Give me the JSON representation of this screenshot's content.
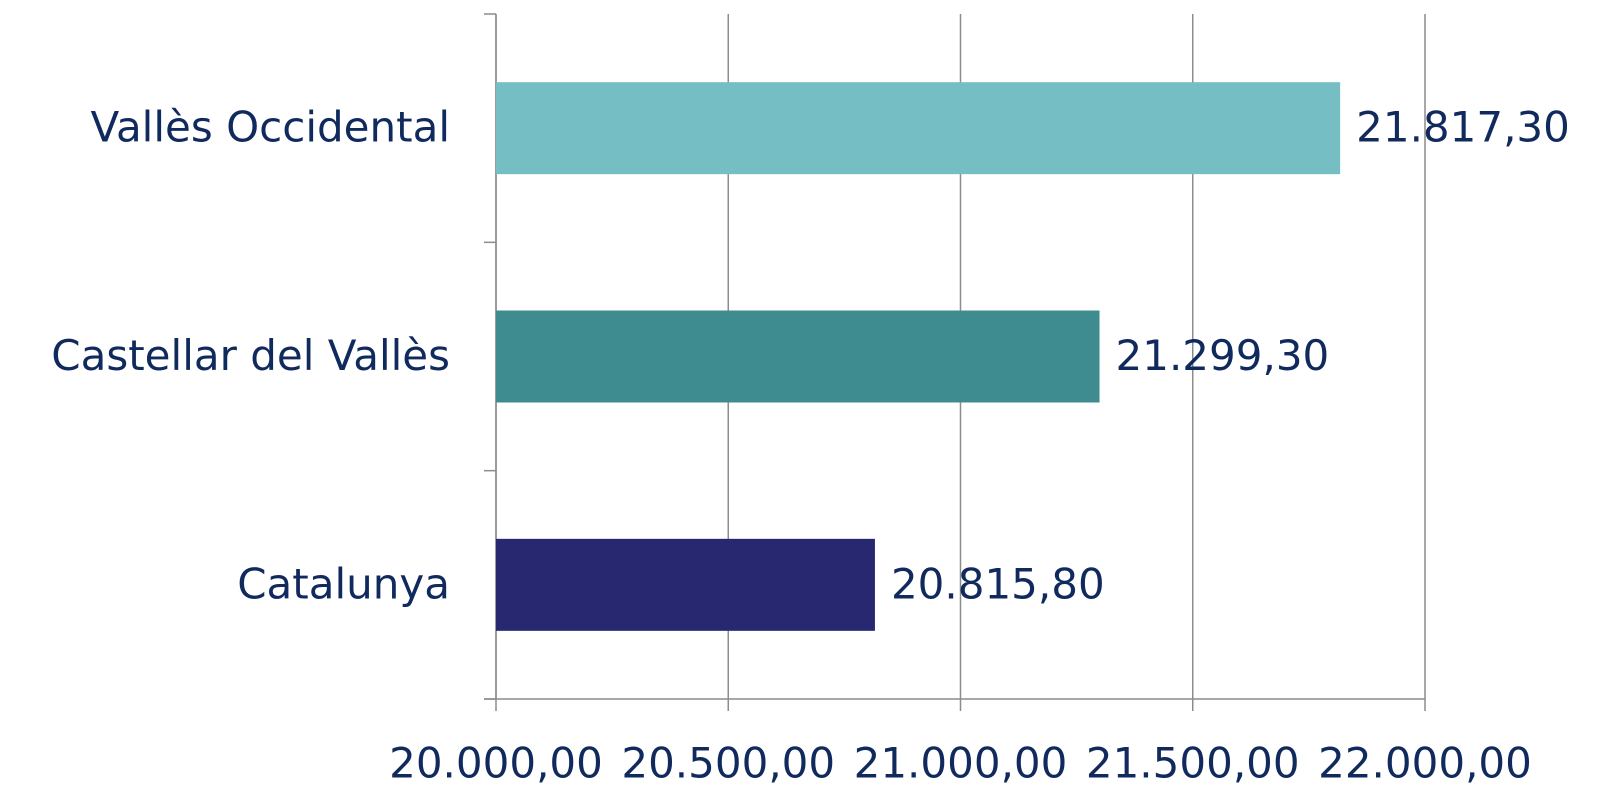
{
  "chart_data": {
    "type": "barh",
    "categories": [
      "Vallès Occidental",
      "Castellar del Vallès",
      "Catalunya"
    ],
    "values": [
      21817.3,
      21299.3,
      20815.8
    ],
    "value_labels": [
      "21.817,30",
      "21.299,30",
      "20.815,80"
    ],
    "colors": [
      "#75bfc4",
      "#3f8c90",
      "#282870"
    ],
    "xlim": [
      20000,
      22000
    ],
    "xticks": [
      {
        "value": 20000,
        "label": "20.000,00"
      },
      {
        "value": 20500,
        "label": "20.500,00"
      },
      {
        "value": 21000,
        "label": "21.000,00"
      },
      {
        "value": 21500,
        "label": "21.500,00"
      },
      {
        "value": 22000,
        "label": "22.000,00"
      }
    ],
    "grid": true
  }
}
